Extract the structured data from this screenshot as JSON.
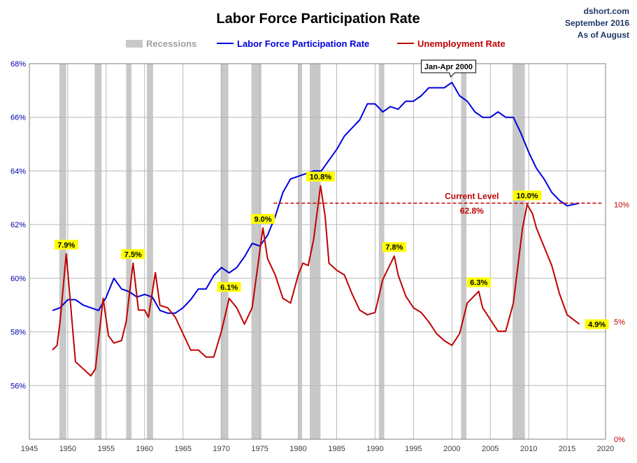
{
  "header": {
    "title": "Labor Force Participation Rate",
    "source": "dshort.com",
    "date_line": "September 2016",
    "as_of": "As of August"
  },
  "legend": {
    "position": "top-center",
    "items": [
      {
        "label": "Recessions",
        "color": "#c8c8c8"
      },
      {
        "label": "Labor Force Participation Rate",
        "color": "#0000dd"
      },
      {
        "label": "Unemployment Rate",
        "color": "#c00000"
      }
    ]
  },
  "colors": {
    "lfpr": "#0000dd",
    "unemployment": "#c00000",
    "recession": "#c8c8c8",
    "grid": "#b8b8b8",
    "label_highlight": "#ffff00",
    "current_level": "#c00000"
  },
  "chart_data": {
    "type": "line",
    "title": "Labor Force Participation Rate",
    "grid": true,
    "legend_placement": "top-center",
    "x_range": [
      1945,
      2020
    ],
    "x_ticks": [
      "1945",
      "1950",
      "1955",
      "1960",
      "1965",
      "1970",
      "1975",
      "1980",
      "1985",
      "1990",
      "1995",
      "2000",
      "2005",
      "2010",
      "2015",
      "2020"
    ],
    "y_left": {
      "range": [
        54,
        68
      ],
      "ticks": [
        "56%",
        "58%",
        "60%",
        "62%",
        "64%",
        "66%",
        "68%"
      ]
    },
    "y_right": {
      "range": [
        0,
        16
      ],
      "ticks": [
        "0%",
        "5%",
        "10%"
      ]
    },
    "recessions": [
      [
        1948.9,
        1949.8
      ],
      [
        1953.5,
        1954.4
      ],
      [
        1957.6,
        1958.3
      ],
      [
        1960.3,
        1961.1
      ],
      [
        1969.9,
        1970.9
      ],
      [
        1973.9,
        1975.2
      ],
      [
        1980.0,
        1980.5
      ],
      [
        1981.5,
        1982.9
      ],
      [
        1990.5,
        1991.2
      ],
      [
        2001.2,
        2001.9
      ],
      [
        2007.9,
        2009.5
      ]
    ],
    "series": [
      {
        "name": "Labor Force Participation Rate",
        "axis": "left",
        "x": [
          1948,
          1949,
          1950,
          1951,
          1952,
          1953,
          1954,
          1955,
          1956,
          1957,
          1958,
          1959,
          1960,
          1961,
          1962,
          1963,
          1964,
          1965,
          1966,
          1967,
          1968,
          1969,
          1970,
          1971,
          1972,
          1973,
          1974,
          1975,
          1976,
          1977,
          1978,
          1979,
          1980,
          1981,
          1982,
          1983,
          1984,
          1985,
          1986,
          1987,
          1988,
          1989,
          1990,
          1991,
          1992,
          1993,
          1994,
          1995,
          1996,
          1997,
          1998,
          1999,
          2000,
          2001,
          2002,
          2003,
          2004,
          2005,
          2006,
          2007,
          2008,
          2009,
          2010,
          2011,
          2012,
          2013,
          2014,
          2015,
          2016.6
        ],
        "values": [
          58.8,
          58.9,
          59.2,
          59.2,
          59.0,
          58.9,
          58.8,
          59.3,
          60.0,
          59.6,
          59.5,
          59.3,
          59.4,
          59.3,
          58.8,
          58.7,
          58.7,
          58.9,
          59.2,
          59.6,
          59.6,
          60.1,
          60.4,
          60.2,
          60.4,
          60.8,
          61.3,
          61.2,
          61.6,
          62.3,
          63.2,
          63.7,
          63.8,
          63.9,
          64.0,
          64.0,
          64.4,
          64.8,
          65.3,
          65.6,
          65.9,
          66.5,
          66.5,
          66.2,
          66.4,
          66.3,
          66.6,
          66.6,
          66.8,
          67.1,
          67.1,
          67.1,
          67.3,
          66.8,
          66.6,
          66.2,
          66.0,
          66.0,
          66.2,
          66.0,
          66.0,
          65.4,
          64.7,
          64.1,
          63.7,
          63.2,
          62.9,
          62.7,
          62.8
        ]
      },
      {
        "name": "Unemployment Rate",
        "axis": "right",
        "x": [
          1948,
          1948.6,
          1949,
          1949.8,
          1950.3,
          1951,
          1952,
          1953,
          1953.6,
          1954.6,
          1955.3,
          1956,
          1957,
          1957.6,
          1958.5,
          1959.2,
          1960,
          1960.5,
          1961.4,
          1962,
          1963,
          1964,
          1965,
          1966,
          1967,
          1968,
          1969,
          1970,
          1971,
          1972,
          1973,
          1974,
          1975.4,
          1976,
          1977,
          1978,
          1979,
          1980,
          1980.6,
          1981.3,
          1982,
          1982.9,
          1983.5,
          1984,
          1985,
          1986,
          1987,
          1988,
          1989,
          1990,
          1991,
          1992.5,
          1993,
          1994,
          1995,
          1996,
          1997,
          1998,
          1999,
          2000,
          2001,
          2002,
          2003.5,
          2004,
          2005,
          2006,
          2007,
          2008,
          2009.2,
          2009.8,
          2010.5,
          2011,
          2012,
          2013,
          2014,
          2015,
          2016.6
        ],
        "values": [
          3.8,
          4.0,
          5.0,
          7.9,
          6.0,
          3.3,
          3.0,
          2.7,
          3.0,
          6.0,
          4.4,
          4.1,
          4.2,
          5.0,
          7.5,
          5.5,
          5.5,
          5.2,
          7.1,
          5.7,
          5.6,
          5.2,
          4.5,
          3.8,
          3.8,
          3.5,
          3.5,
          4.6,
          6.0,
          5.6,
          4.9,
          5.6,
          9.0,
          7.7,
          7.0,
          6.0,
          5.8,
          7.0,
          7.5,
          7.4,
          8.5,
          10.8,
          9.5,
          7.5,
          7.2,
          7.0,
          6.2,
          5.5,
          5.3,
          5.4,
          6.8,
          7.8,
          7.0,
          6.1,
          5.6,
          5.4,
          5.0,
          4.5,
          4.2,
          4.0,
          4.5,
          5.8,
          6.3,
          5.6,
          5.1,
          4.6,
          4.6,
          5.8,
          9.0,
          10.0,
          9.6,
          9.0,
          8.2,
          7.4,
          6.2,
          5.3,
          4.9
        ]
      }
    ],
    "annotations": {
      "peak_label": "Jan-Apr 2000",
      "peak_x": 2000.2,
      "peak_value": 67.3,
      "current_level_label": "Current Level",
      "current_level_value_text": "62.8%",
      "current_level_value": 62.8,
      "current_level_start_x": 1976.8,
      "unemployment_labels": [
        {
          "text": "7.9%",
          "x": 1949.8,
          "value": 7.9
        },
        {
          "text": "7.5%",
          "x": 1958.5,
          "value": 7.5
        },
        {
          "text": "6.1%",
          "x": 1971.0,
          "value": 6.1
        },
        {
          "text": "9.0%",
          "x": 1975.4,
          "value": 9.0
        },
        {
          "text": "10.8%",
          "x": 1982.9,
          "value": 10.8
        },
        {
          "text": "7.8%",
          "x": 1992.5,
          "value": 7.8
        },
        {
          "text": "6.3%",
          "x": 2003.5,
          "value": 6.3
        },
        {
          "text": "10.0%",
          "x": 2009.8,
          "value": 10.0
        },
        {
          "text": "4.9%",
          "x": 2016.6,
          "value": 4.9
        }
      ]
    }
  }
}
